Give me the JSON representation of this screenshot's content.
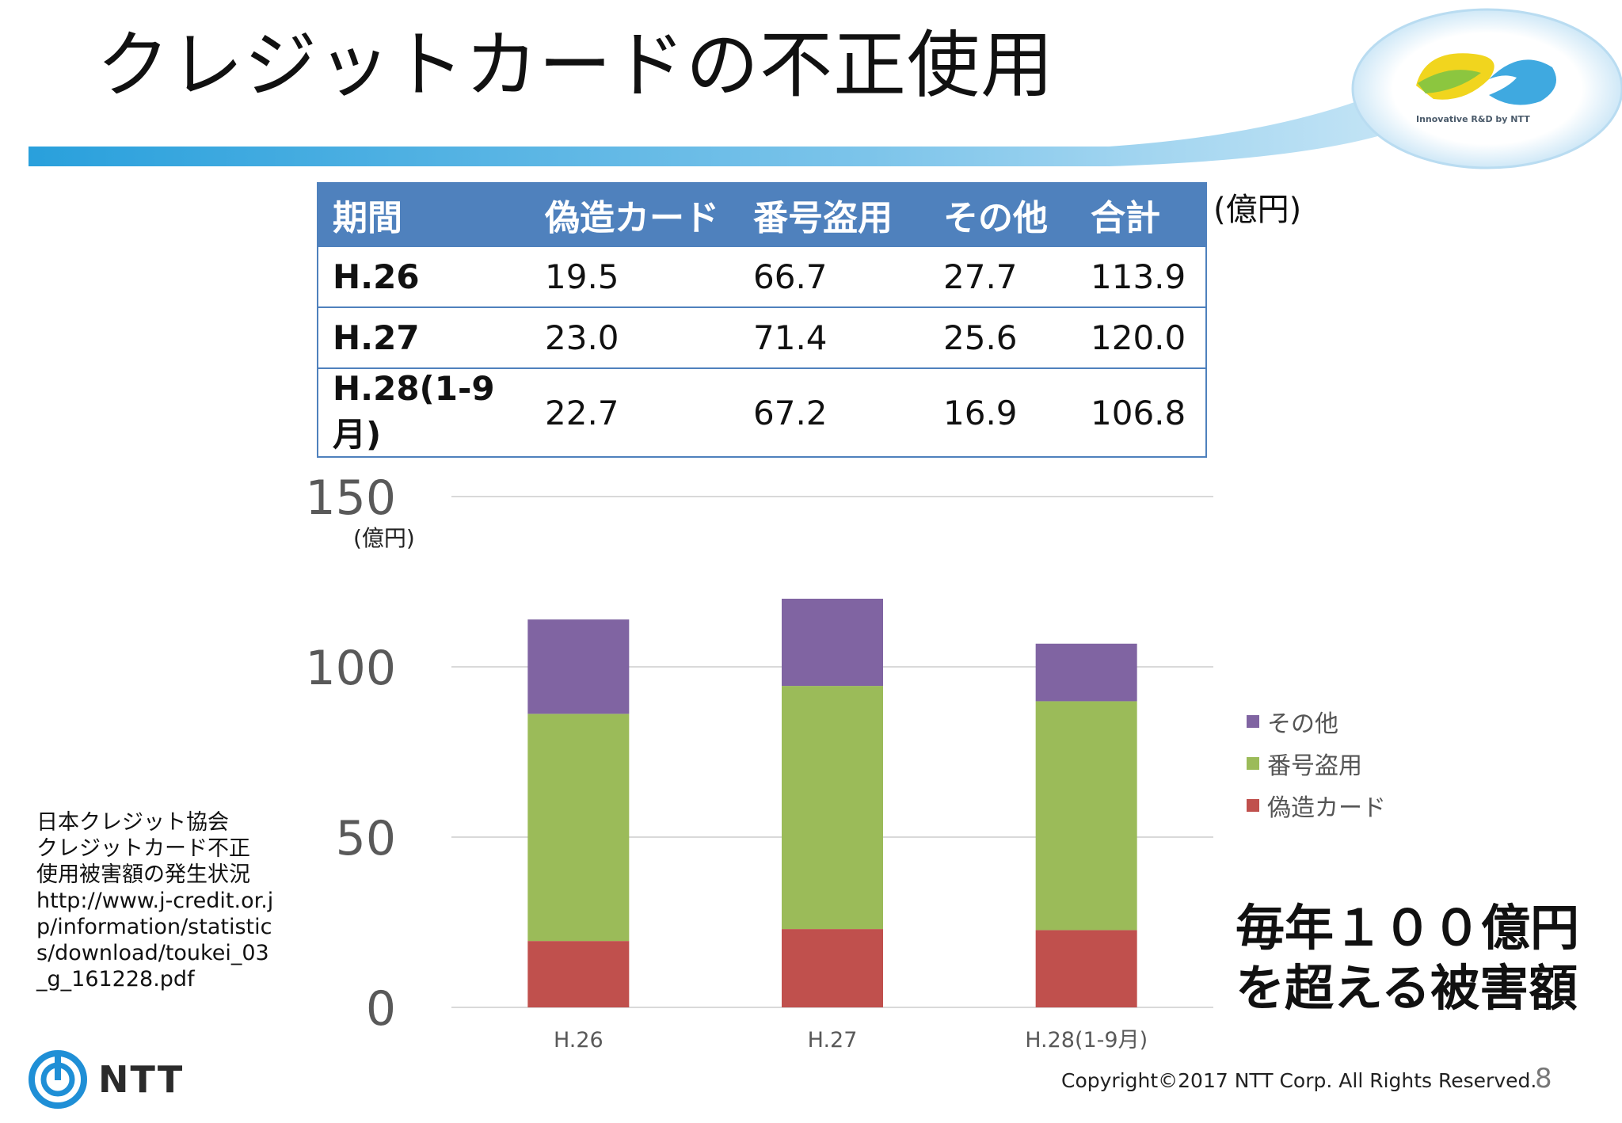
{
  "title": "クレジットカードの不正使用",
  "logo_caption": "Innovative R&D by NTT",
  "table": {
    "unit": "(億円)",
    "headers": [
      "期間",
      "偽造カード",
      "番号盗用",
      "その他",
      "合計"
    ],
    "rows": [
      [
        "H.26",
        "19.5",
        "66.7",
        "27.7",
        "113.9"
      ],
      [
        "H.27",
        "23.0",
        "71.4",
        "25.6",
        "120.0"
      ],
      [
        "H.28(1-9月)",
        "22.7",
        "67.2",
        "16.9",
        "106.8"
      ]
    ]
  },
  "chart_data": {
    "type": "bar",
    "stacked": true,
    "categories": [
      "H.26",
      "H.27",
      "H.28(1-9月)"
    ],
    "series": [
      {
        "name": "偽造カード",
        "values": [
          19.5,
          23.0,
          22.7
        ],
        "color": "#c0504d"
      },
      {
        "name": "番号盗用",
        "values": [
          66.7,
          71.4,
          67.2
        ],
        "color": "#9bbb59"
      },
      {
        "name": "その他",
        "values": [
          27.7,
          25.6,
          16.9
        ],
        "color": "#8064a2"
      }
    ],
    "ylim": [
      0,
      150
    ],
    "yticks": [
      "0",
      "50",
      "100",
      "150"
    ],
    "ylabel": "(億円)",
    "legend_position": "right",
    "grid": true
  },
  "source": {
    "lines": [
      "日本クレジット協会",
      "クレジットカード不正",
      "使用被害額の発生状況",
      "http://www.j-credit.or.jp/information/statistics/download/toukei_03_g_161228.pdf"
    ]
  },
  "callout": {
    "line1": "毎年１００億円",
    "line2": "を超える被害額"
  },
  "footer": {
    "company": "NTT",
    "copyright": "Copyright©2017  NTT Corp. All Rights Reserved.",
    "page": "8"
  },
  "colors": {
    "accent": "#4f81bd",
    "bar_red": "#c0504d",
    "bar_green": "#9bbb59",
    "bar_purple": "#8064a2"
  }
}
